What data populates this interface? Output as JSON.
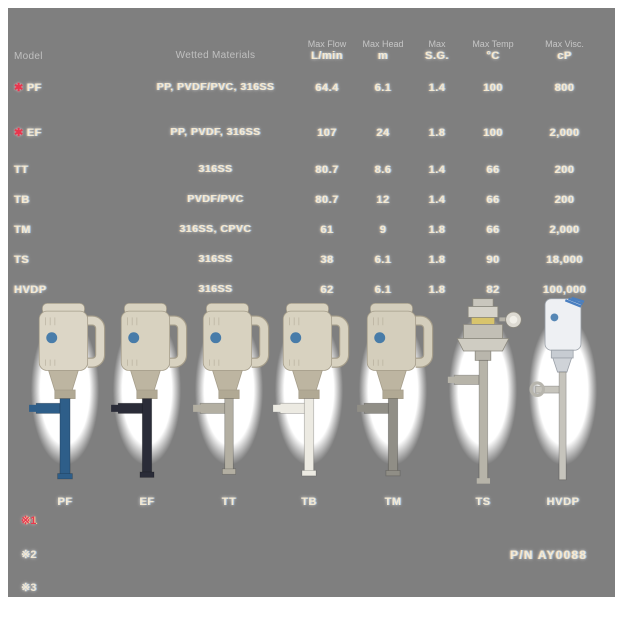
{
  "colors": {
    "background_transparent_gray": "#7f7f7f",
    "page_margin_white": "#ffffff",
    "table_text_cream": "#f4e9d2",
    "accent_red": "#e8374e",
    "accent_blue_fringe": "#96bee6"
  },
  "table": {
    "new_mark": "✱",
    "headers": {
      "model": "Model",
      "materials": "Wetted Materials",
      "flow_name": "Max Flow",
      "flow_unit": "L/min",
      "head_name": "Max Head",
      "head_unit": "m",
      "sg_name": "Max",
      "sg_unit": "S.G.",
      "temp_name": "Max Temp",
      "temp_unit": "°C",
      "visc_name": "Max Visc.",
      "visc_unit": "cP"
    },
    "rows": [
      {
        "model": "PF",
        "new": true,
        "materials": "PP, PVDF/PVC, 316SS",
        "flow": "64.4",
        "head": "6.1",
        "sg": "1.4",
        "temp": "100",
        "visc": "800"
      },
      {
        "model": "EF",
        "new": true,
        "materials": "PP, PVDF, 316SS",
        "flow": "107",
        "head": "24",
        "sg": "1.8",
        "temp": "100",
        "visc": "2,000"
      },
      {
        "model": "TT",
        "new": false,
        "materials": "316SS",
        "flow": "80.7",
        "head": "8.6",
        "sg": "1.4",
        "temp": "66",
        "visc": "200"
      },
      {
        "model": "TB",
        "new": false,
        "materials": "PVDF/PVC",
        "flow": "80.7",
        "head": "12",
        "sg": "1.4",
        "temp": "66",
        "visc": "200"
      },
      {
        "model": "TM",
        "new": false,
        "materials": "316SS, CPVC",
        "flow": "61",
        "head": "9",
        "sg": "1.8",
        "temp": "66",
        "visc": "2,000"
      },
      {
        "model": "TS",
        "new": false,
        "materials": "316SS",
        "flow": "38",
        "head": "6.1",
        "sg": "1.8",
        "temp": "90",
        "visc": "18,000"
      },
      {
        "model": "HVDP",
        "new": false,
        "materials": "316SS",
        "flow": "62",
        "head": "6.1",
        "sg": "1.8",
        "temp": "82",
        "visc": "100,000"
      }
    ]
  },
  "chart_data": {
    "type": "table",
    "columns": [
      "Model",
      "Wetted Materials",
      "Max Flow (L/min)",
      "Max Head (m)",
      "Max S.G.",
      "Max Temp (°C)",
      "Max Visc. (cP)"
    ],
    "rows": [
      [
        "PF",
        "PP, PVDF/PVC, 316SS",
        64.4,
        6.1,
        1.4,
        100,
        800
      ],
      [
        "EF",
        "PP, PVDF, 316SS",
        107,
        24,
        1.8,
        100,
        2000
      ],
      [
        "TT",
        "316SS",
        80.7,
        8.6,
        1.4,
        66,
        200
      ],
      [
        "TB",
        "PVDF/PVC",
        80.7,
        12,
        1.4,
        66,
        200
      ],
      [
        "TM",
        "316SS, CPVC",
        61,
        9,
        1.8,
        66,
        2000
      ],
      [
        "TS",
        "316SS",
        38,
        6.1,
        1.8,
        90,
        18000
      ],
      [
        "HVDP",
        "316SS",
        62,
        6.1,
        1.8,
        82,
        100000
      ]
    ]
  },
  "pumps": [
    {
      "label": "PF",
      "type": "electric",
      "motor_color": "#dcd6c6",
      "tube_color": "#2e5e89",
      "tube_width": 13,
      "tube_len": 84,
      "outlet": true
    },
    {
      "label": "EF",
      "type": "electric",
      "motor_color": "#d8d2c0",
      "tube_color": "#2a2c38",
      "tube_width": 12,
      "tube_len": 82,
      "outlet": true
    },
    {
      "label": "TT",
      "type": "electric",
      "motor_color": "#d8d2c0",
      "tube_color": "#b3afa2",
      "tube_width": 11,
      "tube_len": 78,
      "outlet": true
    },
    {
      "label": "TB",
      "type": "electric",
      "motor_color": "#d8d2c0",
      "tube_color": "#eceae2",
      "tube_width": 12,
      "tube_len": 80,
      "outlet": true
    },
    {
      "label": "TM",
      "type": "electric",
      "motor_color": "#d4cebc",
      "tube_color": "#908e86",
      "tube_width": 12,
      "tube_len": 80,
      "outlet": true
    },
    {
      "label": "TS",
      "type": "air",
      "motor_color": "#c9c6bd",
      "tube_color": "#b7b4a9",
      "tube_width": 11,
      "tube_len": 118,
      "outlet": true
    },
    {
      "label": "HVDP",
      "type": "hvdp",
      "motor_color": "#eef0f3",
      "tube_color": "#c6c4bc",
      "tube_width": 9,
      "tube_len": 112,
      "outlet": true
    }
  ],
  "footnotes": [
    {
      "text": "※1",
      "accent": true
    },
    {
      "text": "※2",
      "accent": false
    },
    {
      "text": "※3",
      "accent": false
    }
  ],
  "part_number": "P/N  AY0088"
}
